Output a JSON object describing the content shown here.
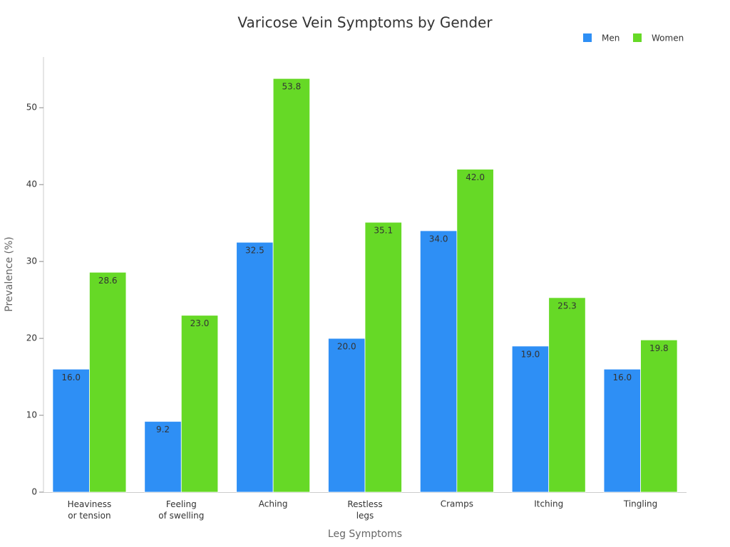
{
  "chart_data": {
    "type": "bar",
    "title": "Varicose Vein Symptoms by Gender",
    "x_label": "Leg Symptoms",
    "y_label": "Prevalence (%)",
    "categories": [
      "Heaviness\nor tension",
      "Feeling\nof swelling",
      "Aching",
      "Restless\nlegs",
      "Cramps",
      "Itching",
      "Tingling"
    ],
    "series": [
      {
        "name": "Men",
        "color": "#2e8ff5",
        "values": [
          16,
          9.2,
          32.5,
          20,
          34,
          19,
          16
        ],
        "value_labels": [
          "16.0",
          "9.2",
          "32.5",
          "20.0",
          "34.0",
          "19.0",
          "16.0"
        ]
      },
      {
        "name": "Women",
        "color": "#66d926",
        "values": [
          28.6,
          23,
          53.8,
          35.1,
          42,
          25.3,
          19.8
        ],
        "value_labels": [
          "28.6",
          "23.0",
          "53.8",
          "35.1",
          "42.0",
          "25.3",
          "19.8"
        ]
      }
    ],
    "ylim": [
      0,
      56.6
    ],
    "yticks": [
      0,
      10,
      20,
      30,
      40,
      50
    ],
    "legend": "top-right"
  }
}
